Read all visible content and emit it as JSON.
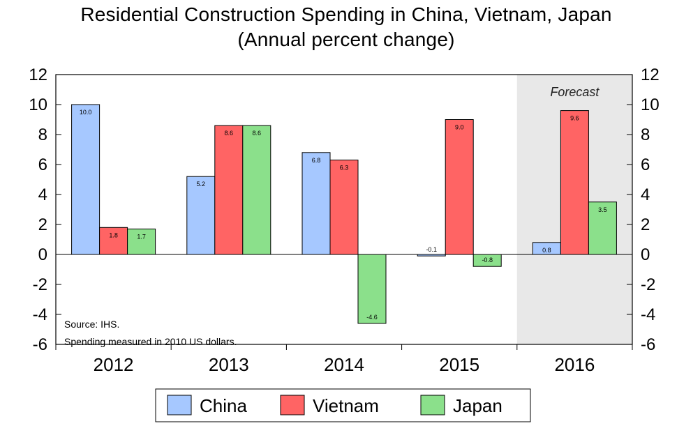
{
  "chart_data": {
    "type": "bar",
    "title": "Residential Construction Spending in China, Vietnam, Japan",
    "subtitle": "(Annual percent change)",
    "categories": [
      "2012",
      "2013",
      "2014",
      "2015",
      "2016"
    ],
    "series": [
      {
        "name": "China",
        "color": "#a6c8ff",
        "values": [
          10.0,
          5.2,
          6.8,
          -0.1,
          0.8
        ],
        "labels": [
          "10.0",
          "5.2",
          "6.8",
          "-0.1",
          "0.8"
        ]
      },
      {
        "name": "Vietnam",
        "color": "#ff6464",
        "values": [
          1.8,
          8.6,
          6.3,
          9.0,
          9.6
        ],
        "labels": [
          "1.8",
          "8.6",
          "6.3",
          "9.0",
          "9.6"
        ]
      },
      {
        "name": "Japan",
        "color": "#8be08b",
        "values": [
          1.7,
          8.6,
          -4.6,
          -0.8,
          3.5
        ],
        "labels": [
          "1.7",
          "8.6",
          "-4.6",
          "-0.8",
          "3.5"
        ]
      }
    ],
    "ylim": [
      -6,
      12
    ],
    "yticks": [
      "12",
      "10",
      "8",
      "6",
      "4",
      "2",
      "0",
      "-2",
      "-4",
      "-6"
    ],
    "ytick_values": [
      12,
      10,
      8,
      6,
      4,
      2,
      0,
      -2,
      -4,
      -6
    ],
    "forecast_category": "2016",
    "forecast_label": "Forecast",
    "forecast_color": "#e8e8e8",
    "notes": [
      "Source: IHS.",
      "Spending measured in 2010 US dollars."
    ],
    "legend_position": "bottom",
    "grid": false
  }
}
